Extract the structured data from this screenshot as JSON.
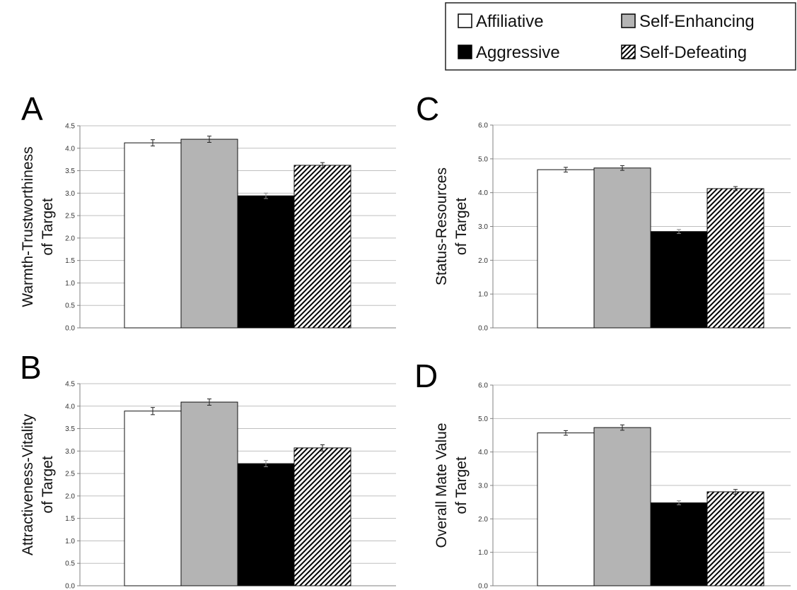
{
  "legend": {
    "items": [
      {
        "label": "Affiliative",
        "swatch": "white"
      },
      {
        "label": "Self-Enhancing",
        "swatch": "gray"
      },
      {
        "label": "Aggressive",
        "swatch": "black"
      },
      {
        "label": "Self-Defeating",
        "swatch": "hatch"
      }
    ]
  },
  "colors": {
    "affiliative": "#ffffff",
    "self_enhancing": "#b4b4b4",
    "aggressive": "#000000",
    "self_defeating_hatch": "#000000",
    "gridline": "#bfbfbf",
    "bar_outline": "#111111"
  },
  "chart_data": [
    {
      "panel": "A",
      "type": "bar",
      "ylabel": [
        "Warmth-Trustworthiness",
        "of Target"
      ],
      "ylim": [
        0,
        4.5
      ],
      "yticks": [
        "0.0",
        "0.5",
        "1.0",
        "1.5",
        "2.0",
        "2.5",
        "3.0",
        "3.5",
        "4.0",
        "4.5"
      ],
      "grid": true,
      "categories": [
        "Affiliative",
        "Self-Enhancing",
        "Aggressive",
        "Self-Defeating"
      ],
      "values": [
        4.12,
        4.2,
        2.94,
        3.62
      ],
      "error": [
        0.07,
        0.07,
        0.06,
        0.06
      ]
    },
    {
      "panel": "C",
      "type": "bar",
      "ylabel": [
        "Status-Resources",
        "of Target"
      ],
      "ylim": [
        0,
        6.0
      ],
      "yticks": [
        "0.0",
        "1.0",
        "2.0",
        "3.0",
        "4.0",
        "5.0",
        "6.0"
      ],
      "grid": true,
      "categories": [
        "Affiliative",
        "Self-Enhancing",
        "Aggressive",
        "Self-Defeating"
      ],
      "values": [
        4.68,
        4.73,
        2.85,
        4.12
      ],
      "error": [
        0.07,
        0.07,
        0.06,
        0.06
      ]
    },
    {
      "panel": "B",
      "type": "bar",
      "ylabel": [
        "Attractiveness-Vitality",
        "of Target"
      ],
      "ylim": [
        0,
        4.5
      ],
      "yticks": [
        "0.0",
        "0.5",
        "1.0",
        "1.5",
        "2.0",
        "2.5",
        "3.0",
        "3.5",
        "4.0",
        "4.5"
      ],
      "grid": true,
      "categories": [
        "Affiliative",
        "Self-Enhancing",
        "Aggressive",
        "Self-Defeating"
      ],
      "values": [
        3.89,
        4.09,
        2.72,
        3.07
      ],
      "error": [
        0.08,
        0.07,
        0.07,
        0.07
      ]
    },
    {
      "panel": "D",
      "type": "bar",
      "ylabel": [
        "Overall Mate Value",
        "of Target"
      ],
      "ylim": [
        0,
        6.0
      ],
      "yticks": [
        "0.0",
        "1.0",
        "2.0",
        "3.0",
        "4.0",
        "5.0",
        "6.0"
      ],
      "grid": true,
      "categories": [
        "Affiliative",
        "Self-Enhancing",
        "Aggressive",
        "Self-Defeating"
      ],
      "values": [
        4.57,
        4.73,
        2.48,
        2.81
      ],
      "error": [
        0.07,
        0.08,
        0.06,
        0.07
      ]
    }
  ]
}
